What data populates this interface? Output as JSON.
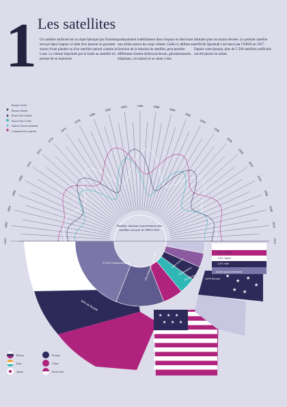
{
  "header": {
    "number": "1",
    "title": "Les satellites"
  },
  "intro": {
    "col1": "Un satellite artificiel est un objet fabriqué par l'homme, envoyé dans l'espace à l'aide d'un lanceur et gravitant autour d'une planète ou d'un satellite naturel comme la Lune. La vitesse imprimée par la fusée au satellite lui permet de se maintenir",
    "col2": "pratiquement indéfiniment dans l'espace en décrivant une orbite autour du corps céleste. Celle-ci, définie en fonction de la mission du satellite, peut prendre différentes formes (héliosynchrone, géostationnaire, elliptique, circulaire) et se situer à des",
    "col3": "altitudes plus ou moins élevées. Le premier satellite artificiel Spoutnik I est lancé par l'URSS en 1957. Depuis cette époque, plus de 5 500 satellites artificiels ont été placés en orbite."
  },
  "legend_series": [
    {
      "label": "Russie Civile",
      "color": "#ffffff",
      "marker": "▪"
    },
    {
      "label": "Russie Armée",
      "color": "#2d2a5a",
      "marker": "▼"
    },
    {
      "label": "Etats-Unis Armée",
      "color": "#2d2a5a",
      "marker": "▲"
    },
    {
      "label": "Etats-Unis Civile",
      "color": "#2fb7b5",
      "marker": "◆"
    },
    {
      "label": "Autres Gouvernements",
      "color": "#2fb7b5",
      "marker": "●"
    },
    {
      "label": "Commercial et privée",
      "color": "#b0237d",
      "marker": "✚"
    }
  ],
  "year_labels": [
    "1960",
    "1962",
    "1964",
    "1966",
    "1968",
    "1970",
    "1972",
    "1974",
    "1976",
    "1978",
    "1980",
    "1982",
    "1984",
    "1986",
    "1988",
    "1990",
    "1992",
    "1994",
    "1996",
    "1998",
    "2000",
    "2002",
    "2004",
    "2006",
    "2008",
    "2010",
    "2012"
  ],
  "center_text": "Nombre, missions et provenances des satellites envoyés de 1968 à 2012",
  "donut_labels": [
    {
      "label": "27,4% Communication"
    },
    {
      "label": "23% Observation de la Terre"
    },
    {
      "label": "7,6% Science"
    },
    {
      "label": "5% Navigation"
    },
    {
      "label": "3% Militaire"
    }
  ],
  "big_segments": [
    {
      "label": "55% de Russie",
      "color": "#ffffff"
    },
    {
      "label": "30% des Etats-Unis",
      "color": "#b0237d"
    },
    {
      "label": "8% Autres Gouvernements",
      "color": "#c8c6e0"
    }
  ],
  "flag_legend": [
    {
      "label": "Russie"
    },
    {
      "label": "Inde"
    },
    {
      "label": "Japon"
    },
    {
      "label": "Europe"
    },
    {
      "label": "Chine"
    },
    {
      "label": "Etats-Unis"
    }
  ],
  "small_labels": [
    {
      "label": "4,8% Europe"
    },
    {
      "label": "2,3% Chine"
    },
    {
      "label": "1,4% Japon"
    },
    {
      "label": "1,3% Inde"
    },
    {
      "label": "Autres gouvernements"
    }
  ],
  "colors": {
    "background": "#dcdceb",
    "navy": "#2d2a5a",
    "magenta": "#b0237d",
    "teal": "#2fb7b5",
    "lavender": "#7a77a8",
    "pale": "#c8c6e0"
  }
}
